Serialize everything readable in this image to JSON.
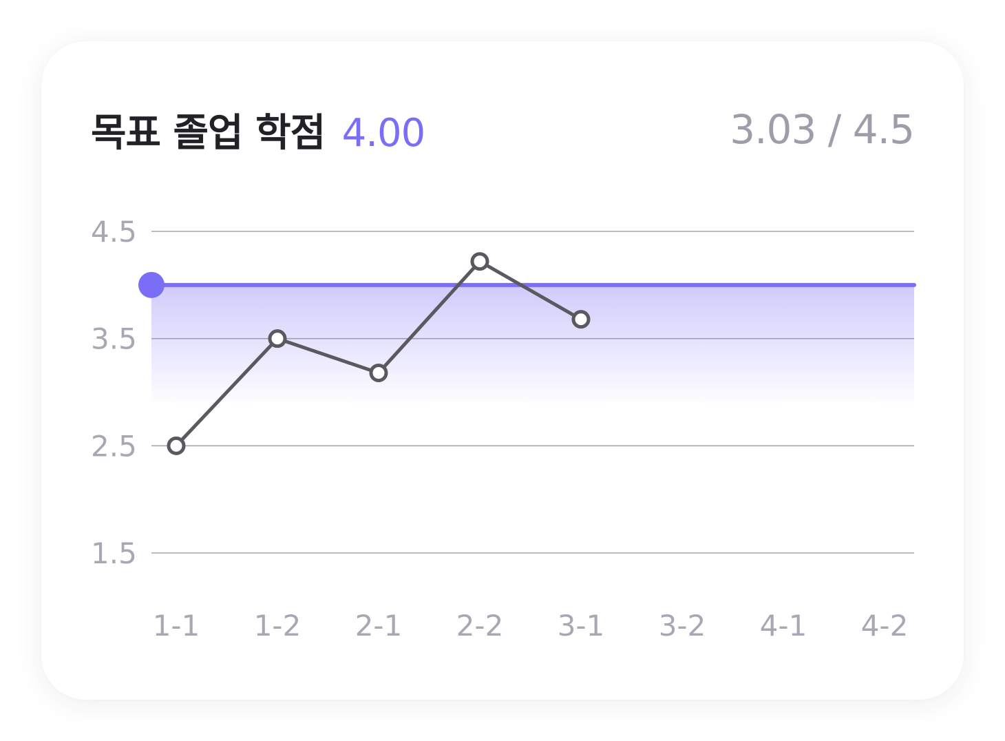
{
  "header": {
    "title": "목표 졸업 학점",
    "target_value": "4.00",
    "current_value": "3.03 / 4.5"
  },
  "colors": {
    "accent": "#7b6ef6",
    "line": "#59595f",
    "grid": "#a6a6b0",
    "tick": "#a8a8b5"
  },
  "chart_data": {
    "type": "line",
    "categories": [
      "1-1",
      "1-2",
      "2-1",
      "2-2",
      "3-1",
      "3-2",
      "4-1",
      "4-2"
    ],
    "series": [
      {
        "values": [
          2.5,
          3.5,
          3.18,
          4.22,
          3.68,
          null,
          null,
          null
        ]
      }
    ],
    "target_line": 4.0,
    "ylim": [
      1.5,
      4.5
    ],
    "yticks": [
      "4.5",
      "3.5",
      "2.5",
      "1.5"
    ],
    "grid": true,
    "xlabel": "",
    "ylabel": ""
  }
}
